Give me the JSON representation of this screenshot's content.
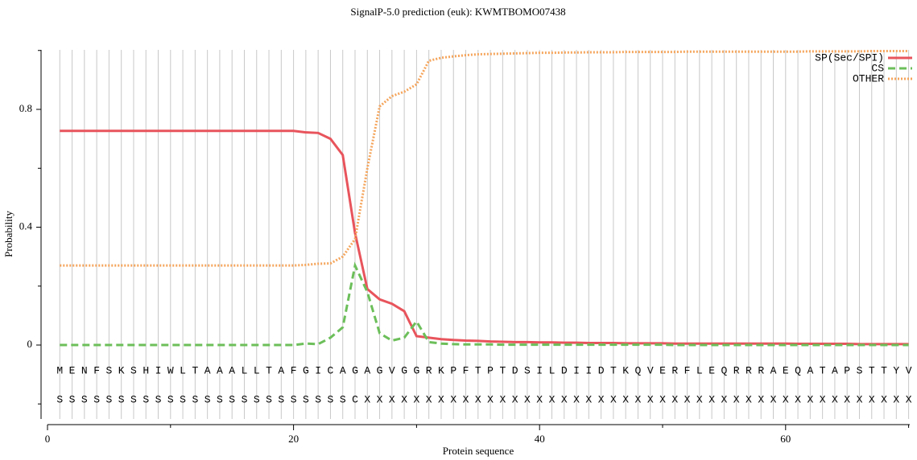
{
  "chart_data": {
    "type": "line",
    "title": "SignalP-5.0 prediction (euk):  KWMTBOMO07438",
    "xlabel": "Protein sequence",
    "ylabel": "Probability",
    "x": [
      1,
      2,
      3,
      4,
      5,
      6,
      7,
      8,
      9,
      10,
      11,
      12,
      13,
      14,
      15,
      16,
      17,
      18,
      19,
      20,
      21,
      22,
      23,
      24,
      25,
      26,
      27,
      28,
      29,
      30,
      31,
      32,
      33,
      34,
      35,
      36,
      37,
      38,
      39,
      40,
      41,
      42,
      43,
      44,
      45,
      46,
      47,
      48,
      49,
      50,
      51,
      52,
      53,
      54,
      55,
      56,
      57,
      58,
      59,
      60,
      61,
      62,
      63,
      64,
      65,
      66,
      67,
      68,
      69,
      70
    ],
    "residues": [
      "M",
      "E",
      "N",
      "F",
      "S",
      "K",
      "S",
      "H",
      "I",
      "W",
      "L",
      "T",
      "A",
      "A",
      "A",
      "L",
      "L",
      "T",
      "A",
      "F",
      "G",
      "I",
      "C",
      "A",
      "G",
      "A",
      "G",
      "V",
      "G",
      "G",
      "R",
      "K",
      "P",
      "F",
      "T",
      "P",
      "T",
      "D",
      "S",
      "I",
      "L",
      "D",
      "I",
      "I",
      "D",
      "T",
      "K",
      "Q",
      "V",
      "E",
      "R",
      "F",
      "L",
      "E",
      "Q",
      "R",
      "R",
      "R",
      "A",
      "E",
      "Q",
      "A",
      "T",
      "A",
      "P",
      "S",
      "T",
      "T",
      "Y",
      "V"
    ],
    "labels": [
      "S",
      "S",
      "S",
      "S",
      "S",
      "S",
      "S",
      "S",
      "S",
      "S",
      "S",
      "S",
      "S",
      "S",
      "S",
      "S",
      "S",
      "S",
      "S",
      "S",
      "S",
      "S",
      "S",
      "S",
      "C",
      "X",
      "X",
      "X",
      "X",
      "X",
      "X",
      "X",
      "X",
      "X",
      "X",
      "X",
      "X",
      "X",
      "X",
      "X",
      "X",
      "X",
      "X",
      "X",
      "X",
      "X",
      "X",
      "X",
      "X",
      "X",
      "X",
      "X",
      "X",
      "X",
      "X",
      "X",
      "X",
      "X",
      "X",
      "X",
      "X",
      "X",
      "X",
      "X",
      "X",
      "X",
      "X",
      "X",
      "X",
      "X"
    ],
    "series": [
      {
        "name": "SP(Sec/SPI)",
        "color": "#e8545c",
        "style": "solid",
        "values": [
          0.727,
          0.727,
          0.727,
          0.727,
          0.727,
          0.727,
          0.727,
          0.727,
          0.727,
          0.727,
          0.727,
          0.727,
          0.727,
          0.727,
          0.727,
          0.727,
          0.727,
          0.727,
          0.727,
          0.727,
          0.722,
          0.72,
          0.7,
          0.645,
          0.38,
          0.19,
          0.155,
          0.14,
          0.115,
          0.03,
          0.025,
          0.02,
          0.017,
          0.015,
          0.014,
          0.012,
          0.011,
          0.01,
          0.01,
          0.009,
          0.009,
          0.008,
          0.008,
          0.007,
          0.007,
          0.007,
          0.006,
          0.006,
          0.006,
          0.006,
          0.005,
          0.005,
          0.005,
          0.005,
          0.005,
          0.005,
          0.005,
          0.005,
          0.005,
          0.005,
          0.004,
          0.004,
          0.004,
          0.004,
          0.004,
          0.003,
          0.003,
          0.003,
          0.003,
          0.003
        ]
      },
      {
        "name": "CS",
        "color": "#6cbf5a",
        "style": "dashed",
        "values": [
          0,
          0,
          0,
          0,
          0,
          0,
          0,
          0,
          0,
          0,
          0,
          0,
          0,
          0,
          0,
          0,
          0,
          0,
          0,
          0,
          0.005,
          0.003,
          0.025,
          0.06,
          0.27,
          0.18,
          0.04,
          0.015,
          0.025,
          0.08,
          0.01,
          0.005,
          0.003,
          0.002,
          0.002,
          0.002,
          0.001,
          0.001,
          0.001,
          0.001,
          0.001,
          0.001,
          0.001,
          0.001,
          0.001,
          0.001,
          0.001,
          0.001,
          0.001,
          0.001,
          0,
          0,
          0,
          0,
          0,
          0,
          0,
          0,
          0,
          0,
          0,
          0,
          0,
          0,
          0,
          0,
          0,
          0,
          0,
          0
        ]
      },
      {
        "name": "OTHER",
        "color": "#f5a55c",
        "style": "dotted",
        "values": [
          0.27,
          0.27,
          0.27,
          0.27,
          0.27,
          0.27,
          0.27,
          0.27,
          0.27,
          0.27,
          0.27,
          0.27,
          0.27,
          0.27,
          0.27,
          0.27,
          0.27,
          0.27,
          0.27,
          0.27,
          0.272,
          0.276,
          0.277,
          0.3,
          0.36,
          0.6,
          0.81,
          0.845,
          0.86,
          0.885,
          0.965,
          0.975,
          0.98,
          0.984,
          0.987,
          0.988,
          0.989,
          0.99,
          0.991,
          0.992,
          0.992,
          0.993,
          0.993,
          0.994,
          0.994,
          0.994,
          0.995,
          0.995,
          0.995,
          0.995,
          0.995,
          0.996,
          0.996,
          0.996,
          0.996,
          0.996,
          0.996,
          0.996,
          0.996,
          0.996,
          0.996,
          0.997,
          0.997,
          0.997,
          0.997,
          0.997,
          0.998,
          0.998,
          0.998,
          0.998
        ]
      }
    ],
    "xlim": [
      0,
      70
    ],
    "xticks": [
      0,
      20,
      40,
      60
    ],
    "xminorticks": [
      10,
      30,
      50,
      70
    ],
    "ylim": [
      -0.25,
      1.0
    ],
    "yticks": [
      0,
      0.4,
      0.8
    ],
    "yminorticks": [
      -0.2,
      0.2,
      0.6,
      1.0
    ],
    "grid": true,
    "legend": "top-right"
  }
}
